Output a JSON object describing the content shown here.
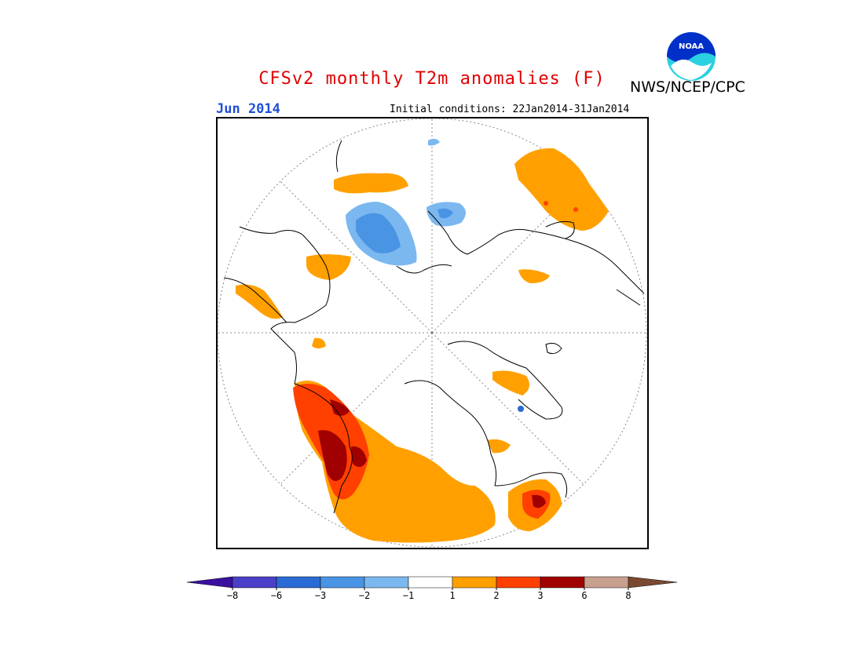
{
  "title": "CFSv2 monthly T2m anomalies (F)",
  "agency": "NWS/NCEP/CPC",
  "logo_text": "NOAA",
  "month_label": "Jun 2014",
  "initial_conditions": "Initial conditions: 22Jan2014-31Jan2014",
  "colors": {
    "title": "#e00000",
    "month": "#1f4fd8",
    "frame": "#000000"
  },
  "legend": {
    "ticks": [
      "-8",
      "-6",
      "-3",
      "-2",
      "-1",
      "1",
      "2",
      "3",
      "6",
      "8"
    ],
    "colors": [
      "#3a10a0",
      "#4a40c8",
      "#2a6ad4",
      "#4a94e4",
      "#7cb8f0",
      "#ffffff",
      "#ffa000",
      "#ff4000",
      "#a00000",
      "#c8a090",
      "#7a4a30"
    ]
  }
}
